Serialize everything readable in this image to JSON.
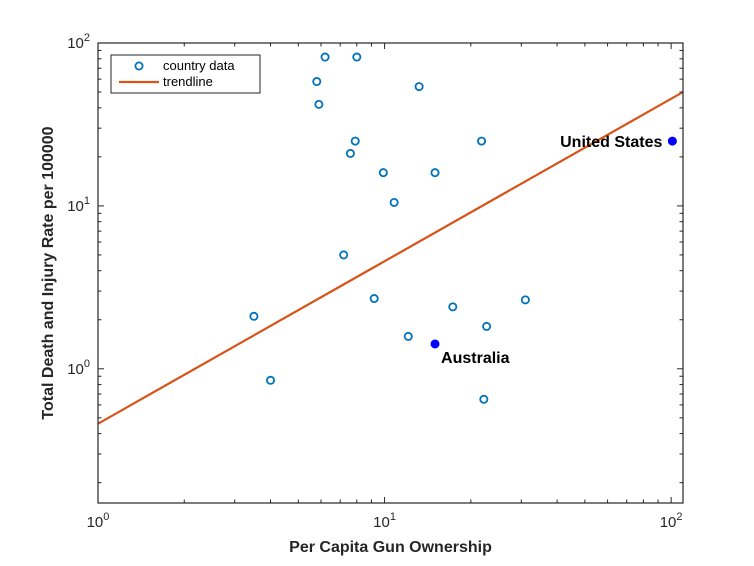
{
  "chart_data": {
    "type": "scatter",
    "title": "",
    "xlabel": "Per Capita Gun Ownership",
    "ylabel": "Total Death and Injury Rate per 100000",
    "xscale": "log",
    "yscale": "log",
    "xlim": [
      1,
      110
    ],
    "ylim": [
      0.15,
      100
    ],
    "grid": false,
    "legend_position": "top-left",
    "x_ticks": [
      {
        "value": 1,
        "base": "10",
        "exp": "0"
      },
      {
        "value": 10,
        "base": "10",
        "exp": "1"
      },
      {
        "value": 100,
        "base": "10",
        "exp": "2"
      }
    ],
    "y_ticks": [
      {
        "value": 1,
        "base": "10",
        "exp": "0"
      },
      {
        "value": 10,
        "base": "10",
        "exp": "1"
      },
      {
        "value": 100,
        "base": "10",
        "exp": "2"
      }
    ],
    "series": [
      {
        "name": "country data",
        "color": "#0072BD",
        "marker": "open-circle",
        "points": [
          {
            "x": 3.5,
            "y": 2.1
          },
          {
            "x": 4.0,
            "y": 0.85
          },
          {
            "x": 5.8,
            "y": 58
          },
          {
            "x": 5.9,
            "y": 42
          },
          {
            "x": 6.2,
            "y": 82
          },
          {
            "x": 7.2,
            "y": 5.0
          },
          {
            "x": 7.6,
            "y": 21
          },
          {
            "x": 7.9,
            "y": 25
          },
          {
            "x": 8.0,
            "y": 82
          },
          {
            "x": 9.2,
            "y": 2.7
          },
          {
            "x": 9.9,
            "y": 16
          },
          {
            "x": 10.8,
            "y": 10.5
          },
          {
            "x": 12.1,
            "y": 1.58
          },
          {
            "x": 13.2,
            "y": 54
          },
          {
            "x": 15.0,
            "y": 16
          },
          {
            "x": 17.3,
            "y": 2.4
          },
          {
            "x": 21.8,
            "y": 25
          },
          {
            "x": 22.2,
            "y": 0.65
          },
          {
            "x": 22.7,
            "y": 1.82
          },
          {
            "x": 31.0,
            "y": 2.65
          }
        ]
      },
      {
        "name": "trendline",
        "color": "#D95319",
        "type": "line",
        "points": [
          {
            "x": 1,
            "y": 0.46
          },
          {
            "x": 110,
            "y": 50
          }
        ]
      }
    ],
    "highlights": [
      {
        "label": "United States",
        "x": 101,
        "y": 25,
        "color": "#0000FF",
        "label_anchor": "end",
        "label_dx": -10,
        "label_dy": 6
      },
      {
        "label": "Australia",
        "x": 15.0,
        "y": 1.42,
        "color": "#0000FF",
        "label_anchor": "start",
        "label_dx": 6,
        "label_dy": 19
      }
    ]
  }
}
